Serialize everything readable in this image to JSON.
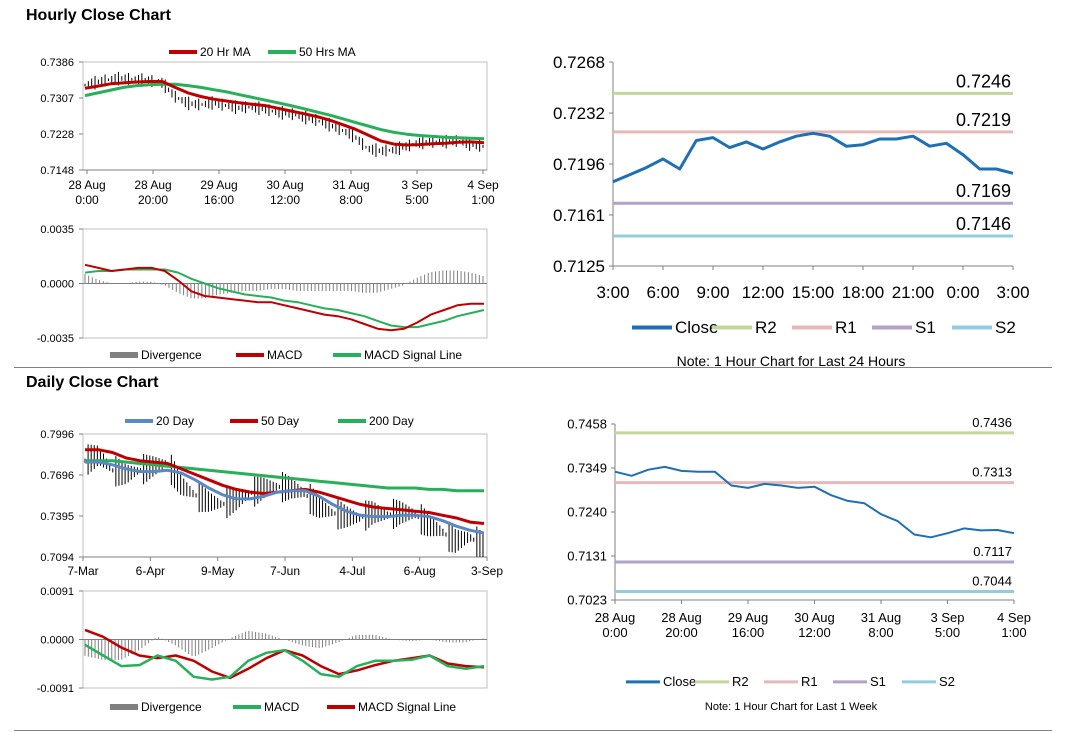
{
  "sections": {
    "hourly_title": "Hourly Close Chart",
    "daily_title": "Daily Close Chart"
  },
  "colors": {
    "ma_red": "#c00000",
    "ma_green": "#27b05a",
    "ma_blue": "#5a87c5",
    "close_blue": "#1f6fb5",
    "r2": "#c3d69b",
    "r1": "#e6b9b8",
    "s1": "#b3a2c7",
    "s2": "#93cddd",
    "divergence": "#7f7f7f"
  },
  "chart_data": [
    {
      "id": "hourly_price",
      "type": "line",
      "legend": [
        "20 Hr MA",
        "50 Hrs MA"
      ],
      "y_ticks": [
        "0.7386",
        "0.7307",
        "0.7228",
        "0.7148"
      ],
      "ylim": [
        0.7148,
        0.7386
      ],
      "x_ticks": [
        [
          "28 Aug",
          "0:00"
        ],
        [
          "28 Aug",
          "20:00"
        ],
        [
          "29 Aug",
          "16:00"
        ],
        [
          "30 Aug",
          "12:00"
        ],
        [
          "31 Aug",
          "8:00"
        ],
        [
          "3 Sep",
          "5:00"
        ],
        [
          "4 Sep",
          "1:00"
        ]
      ],
      "series": [
        {
          "name": "Price",
          "values": [
            0.7335,
            0.7342,
            0.7348,
            0.735,
            0.7347,
            0.7345,
            0.734,
            0.731,
            0.7295,
            0.7292,
            0.7296,
            0.729,
            0.7285,
            0.7287,
            0.7282,
            0.7275,
            0.7272,
            0.7265,
            0.7258,
            0.7248,
            0.7236,
            0.7222,
            0.7195,
            0.719,
            0.7192,
            0.72,
            0.7208,
            0.721,
            0.721,
            0.7212,
            0.7205,
            0.72
          ]
        },
        {
          "name": "20 Hr MA",
          "values": [
            0.7328,
            0.7333,
            0.7338,
            0.734,
            0.7342,
            0.7343,
            0.7343,
            0.733,
            0.7318,
            0.731,
            0.7304,
            0.73,
            0.7296,
            0.7293,
            0.729,
            0.7284,
            0.7278,
            0.7272,
            0.7266,
            0.7258,
            0.7248,
            0.7238,
            0.7225,
            0.7212,
            0.7205,
            0.7203,
            0.7204,
            0.7206,
            0.7207,
            0.7209,
            0.721,
            0.7208
          ]
        },
        {
          "name": "50 Hrs MA",
          "values": [
            0.7312,
            0.7318,
            0.7324,
            0.733,
            0.7334,
            0.7336,
            0.7337,
            0.7337,
            0.7334,
            0.733,
            0.7325,
            0.732,
            0.7314,
            0.7308,
            0.7302,
            0.7296,
            0.729,
            0.7283,
            0.7276,
            0.7269,
            0.7261,
            0.7253,
            0.7245,
            0.7237,
            0.7231,
            0.7227,
            0.7224,
            0.7222,
            0.722,
            0.7219,
            0.7218,
            0.7217
          ]
        }
      ]
    },
    {
      "id": "hourly_macd",
      "type": "line",
      "legend": [
        "Divergence",
        "MACD",
        "MACD Signal Line"
      ],
      "y_ticks": [
        "0.0035",
        "0.0000",
        "-0.0035"
      ],
      "ylim": [
        -0.0035,
        0.0035
      ],
      "series": [
        {
          "name": "MACD",
          "values": [
            0.0012,
            0.001,
            0.0008,
            0.0009,
            0.001,
            0.001,
            0.0008,
            0.0002,
            -0.0005,
            -0.0008,
            -0.0009,
            -0.001,
            -0.0011,
            -0.0012,
            -0.0012,
            -0.0014,
            -0.0016,
            -0.0018,
            -0.002,
            -0.0021,
            -0.0023,
            -0.0026,
            -0.0029,
            -0.003,
            -0.0029,
            -0.0025,
            -0.002,
            -0.0017,
            -0.0014,
            -0.0013,
            -0.0013
          ]
        },
        {
          "name": "MACD Signal Line",
          "values": [
            0.0007,
            0.0008,
            0.0008,
            0.0009,
            0.0009,
            0.0009,
            0.0009,
            0.0007,
            0.0003,
            0.0,
            -0.0003,
            -0.0005,
            -0.0007,
            -0.0008,
            -0.0009,
            -0.0011,
            -0.0012,
            -0.0014,
            -0.0016,
            -0.0017,
            -0.0019,
            -0.0021,
            -0.0024,
            -0.0027,
            -0.0028,
            -0.0028,
            -0.0026,
            -0.0024,
            -0.0021,
            -0.0019,
            -0.0017
          ]
        }
      ]
    },
    {
      "id": "hourly_24h",
      "type": "line",
      "title": "Note: 1 Hour Chart for Last 24 Hours",
      "legend": [
        "Close",
        "R2",
        "R1",
        "S1",
        "S2"
      ],
      "y_ticks": [
        "0.7268",
        "0.7232",
        "0.7196",
        "0.7161",
        "0.7125"
      ],
      "ylim": [
        0.7125,
        0.7268
      ],
      "x_ticks": [
        "3:00",
        "6:00",
        "9:00",
        "12:00",
        "15:00",
        "18:00",
        "21:00",
        "0:00",
        "3:00"
      ],
      "levels": [
        {
          "name": "R2",
          "value": 0.7246,
          "label": "0.7246"
        },
        {
          "name": "R1",
          "value": 0.7219,
          "label": "0.7219"
        },
        {
          "name": "S1",
          "value": 0.7169,
          "label": "0.7169"
        },
        {
          "name": "S2",
          "value": 0.7146,
          "label": "0.7146"
        }
      ],
      "series": [
        {
          "name": "Close",
          "values": [
            0.7184,
            0.7189,
            0.7194,
            0.72,
            0.7193,
            0.7213,
            0.7215,
            0.7208,
            0.7212,
            0.7207,
            0.7212,
            0.7216,
            0.7218,
            0.7216,
            0.7209,
            0.721,
            0.7214,
            0.7214,
            0.7216,
            0.7209,
            0.7211,
            0.7203,
            0.7193,
            0.7193,
            0.719
          ]
        }
      ]
    },
    {
      "id": "daily_price",
      "type": "line",
      "legend": [
        "20 Day",
        "50 Day",
        "200 Day"
      ],
      "y_ticks": [
        "0.7996",
        "0.7696",
        "0.7395",
        "0.7094"
      ],
      "ylim": [
        0.7094,
        0.7996
      ],
      "x_ticks": [
        "7-Mar",
        "6-Apr",
        "9-May",
        "7-Jun",
        "4-Jul",
        "6-Aug",
        "3-Sep"
      ],
      "series": [
        {
          "name": "Price",
          "values": [
            0.78,
            0.784,
            0.773,
            0.77,
            0.773,
            0.776,
            0.778,
            0.762,
            0.755,
            0.75,
            0.748,
            0.751,
            0.756,
            0.76,
            0.761,
            0.76,
            0.756,
            0.746,
            0.742,
            0.739,
            0.738,
            0.742,
            0.74,
            0.742,
            0.741,
            0.733,
            0.728,
            0.721,
            0.724,
            0.718
          ]
        },
        {
          "name": "20 Day",
          "values": [
            0.779,
            0.779,
            0.777,
            0.774,
            0.772,
            0.772,
            0.773,
            0.771,
            0.766,
            0.76,
            0.755,
            0.752,
            0.752,
            0.754,
            0.757,
            0.758,
            0.758,
            0.754,
            0.748,
            0.743,
            0.74,
            0.739,
            0.739,
            0.74,
            0.74,
            0.739,
            0.736,
            0.732,
            0.729,
            0.727
          ]
        },
        {
          "name": "50 Day",
          "values": [
            0.788,
            0.788,
            0.786,
            0.782,
            0.78,
            0.779,
            0.778,
            0.774,
            0.77,
            0.766,
            0.762,
            0.759,
            0.757,
            0.756,
            0.757,
            0.758,
            0.759,
            0.757,
            0.754,
            0.751,
            0.748,
            0.746,
            0.745,
            0.744,
            0.743,
            0.742,
            0.74,
            0.738,
            0.735,
            0.734
          ]
        },
        {
          "name": "200 Day",
          "values": [
            0.78,
            0.78,
            0.78,
            0.779,
            0.778,
            0.777,
            0.776,
            0.775,
            0.774,
            0.773,
            0.772,
            0.771,
            0.77,
            0.769,
            0.768,
            0.767,
            0.766,
            0.765,
            0.764,
            0.763,
            0.762,
            0.761,
            0.76,
            0.76,
            0.76,
            0.759,
            0.759,
            0.758,
            0.758,
            0.758
          ]
        }
      ]
    },
    {
      "id": "daily_macd",
      "type": "line",
      "legend": [
        "Divergence",
        "MACD",
        "MACD Signal Line"
      ],
      "y_ticks": [
        "0.0091",
        "0.0000",
        "-0.0091"
      ],
      "ylim": [
        -0.0091,
        0.0091
      ],
      "series": [
        {
          "name": "MACD",
          "values": [
            -0.001,
            -0.003,
            -0.005,
            -0.0048,
            -0.003,
            -0.004,
            -0.007,
            -0.0075,
            -0.007,
            -0.004,
            -0.0025,
            -0.002,
            -0.004,
            -0.0065,
            -0.007,
            -0.005,
            -0.004,
            -0.004,
            -0.0038,
            -0.003,
            -0.005,
            -0.0055,
            -0.005
          ]
        },
        {
          "name": "MACD Signal Line",
          "values": [
            0.0018,
            0.0005,
            -0.0015,
            -0.003,
            -0.0035,
            -0.003,
            -0.004,
            -0.006,
            -0.0072,
            -0.0055,
            -0.0035,
            -0.002,
            -0.003,
            -0.005,
            -0.0065,
            -0.0058,
            -0.0048,
            -0.004,
            -0.0035,
            -0.003,
            -0.0045,
            -0.005,
            -0.0052
          ]
        }
      ]
    },
    {
      "id": "daily_week",
      "type": "line",
      "title": "Note: 1 Hour Chart for Last 1 Week",
      "legend": [
        "Close",
        "R2",
        "R1",
        "S1",
        "S2"
      ],
      "y_ticks": [
        "0.7458",
        "0.7349",
        "0.7240",
        "0.7131",
        "0.7023"
      ],
      "ylim": [
        0.7023,
        0.7458
      ],
      "x_ticks": [
        [
          "28 Aug",
          "0:00"
        ],
        [
          "28 Aug",
          "20:00"
        ],
        [
          "29 Aug",
          "16:00"
        ],
        [
          "30 Aug",
          "12:00"
        ],
        [
          "31 Aug",
          "8:00"
        ],
        [
          "3 Sep",
          "5:00"
        ],
        [
          "4 Sep",
          "1:00"
        ]
      ],
      "levels": [
        {
          "name": "R2",
          "value": 0.7436,
          "label": "0.7436"
        },
        {
          "name": "R1",
          "value": 0.7313,
          "label": "0.7313"
        },
        {
          "name": "S1",
          "value": 0.7117,
          "label": "0.7117"
        },
        {
          "name": "S2",
          "value": 0.7044,
          "label": "0.7044"
        }
      ],
      "series": [
        {
          "name": "Close",
          "values": [
            0.734,
            0.733,
            0.7345,
            0.7352,
            0.7342,
            0.734,
            0.734,
            0.7306,
            0.73,
            0.731,
            0.7306,
            0.73,
            0.7303,
            0.7282,
            0.7268,
            0.7262,
            0.7235,
            0.7218,
            0.7185,
            0.7178,
            0.7188,
            0.72,
            0.7195,
            0.7196,
            0.7188
          ]
        }
      ]
    }
  ]
}
